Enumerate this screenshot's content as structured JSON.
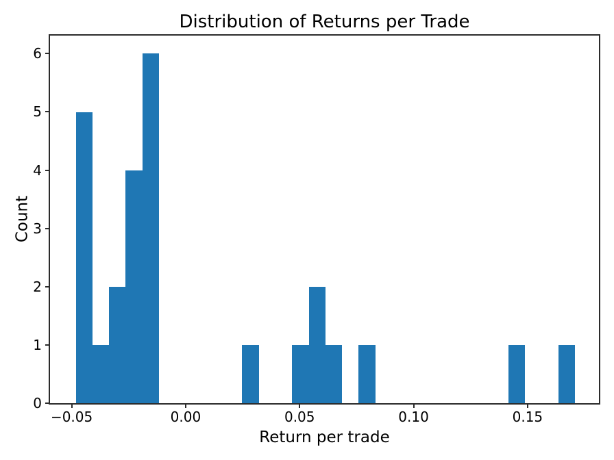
{
  "chart_data": {
    "type": "bar",
    "variant": "histogram",
    "title": "Distribution of Returns per Trade",
    "xlabel": "Return per trade",
    "ylabel": "Count",
    "bar_color": "#1f77b4",
    "axis_color": "#2b2b2b",
    "grid": false,
    "bins": 30,
    "bin_start": -0.0482,
    "bin_width": 0.0073,
    "counts": [
      5,
      1,
      2,
      4,
      6,
      0,
      0,
      0,
      0,
      0,
      1,
      0,
      0,
      1,
      2,
      1,
      0,
      1,
      0,
      0,
      0,
      0,
      0,
      0,
      0,
      0,
      1,
      0,
      0,
      1
    ],
    "xlim": [
      -0.0595,
      0.1813
    ],
    "ylim": [
      0,
      6.31
    ],
    "xticks": [
      {
        "value": -0.05,
        "label": "−0.05"
      },
      {
        "value": 0.0,
        "label": "0.00"
      },
      {
        "value": 0.05,
        "label": "0.05"
      },
      {
        "value": 0.1,
        "label": "0.10"
      },
      {
        "value": 0.15,
        "label": "0.15"
      }
    ],
    "yticks": [
      {
        "value": 0,
        "label": "0"
      },
      {
        "value": 1,
        "label": "1"
      },
      {
        "value": 2,
        "label": "2"
      },
      {
        "value": 3,
        "label": "3"
      },
      {
        "value": 4,
        "label": "4"
      },
      {
        "value": 5,
        "label": "5"
      },
      {
        "value": 6,
        "label": "6"
      }
    ]
  }
}
